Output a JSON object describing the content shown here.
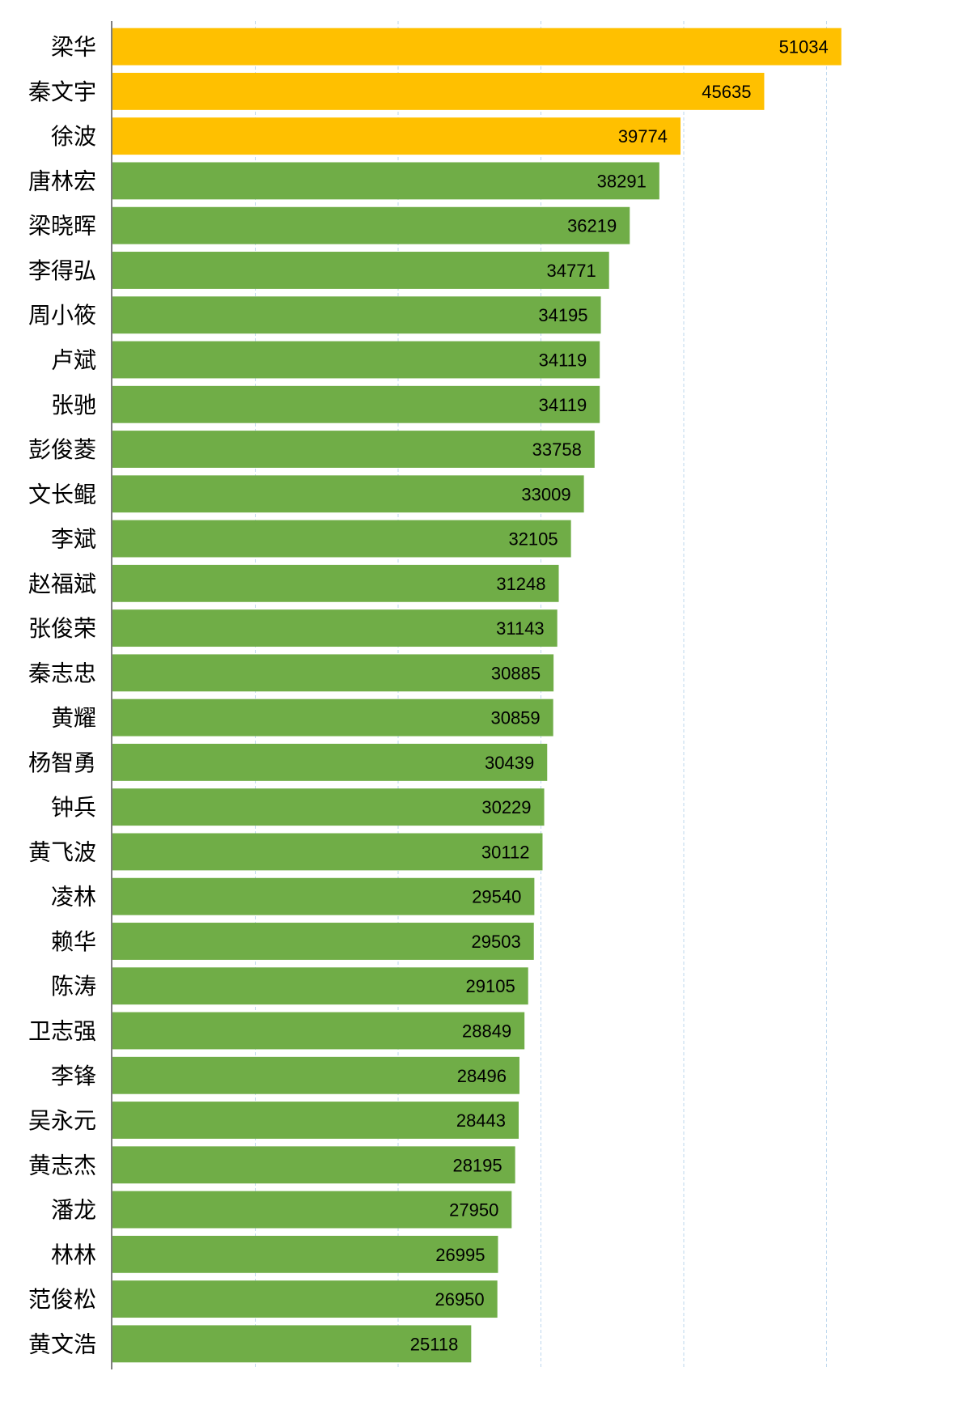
{
  "chart_data": {
    "type": "bar",
    "orientation": "horizontal",
    "categories": [
      "梁华",
      "秦文宇",
      "徐波",
      "唐林宏",
      "梁晓晖",
      "李得弘",
      "周小筱",
      "卢斌",
      "张驰",
      "彭俊菱",
      "文长鲲",
      "李斌",
      "赵福斌",
      "张俊荣",
      "秦志忠",
      "黄耀",
      "杨智勇",
      "钟兵",
      "黄飞波",
      "凌林",
      "赖华",
      "陈涛",
      "卫志强",
      "李锋",
      "吴永元",
      "黄志杰",
      "潘龙",
      "林林",
      "范俊松",
      "黄文浩"
    ],
    "values": [
      51034,
      45635,
      39774,
      38291,
      36219,
      34771,
      34195,
      34119,
      34119,
      33758,
      33009,
      32105,
      31248,
      31143,
      30885,
      30859,
      30439,
      30229,
      30112,
      29540,
      29503,
      29105,
      28849,
      28496,
      28443,
      28195,
      27950,
      26995,
      26950,
      25118
    ],
    "highlight_count": 3,
    "colors": {
      "highlight": "#ffc000",
      "normal": "#70ad47",
      "grid": "#bdd7ee",
      "axis": "#7f7f7f"
    },
    "xlim": [
      0,
      55000
    ],
    "grid": true,
    "data_labels": true
  }
}
